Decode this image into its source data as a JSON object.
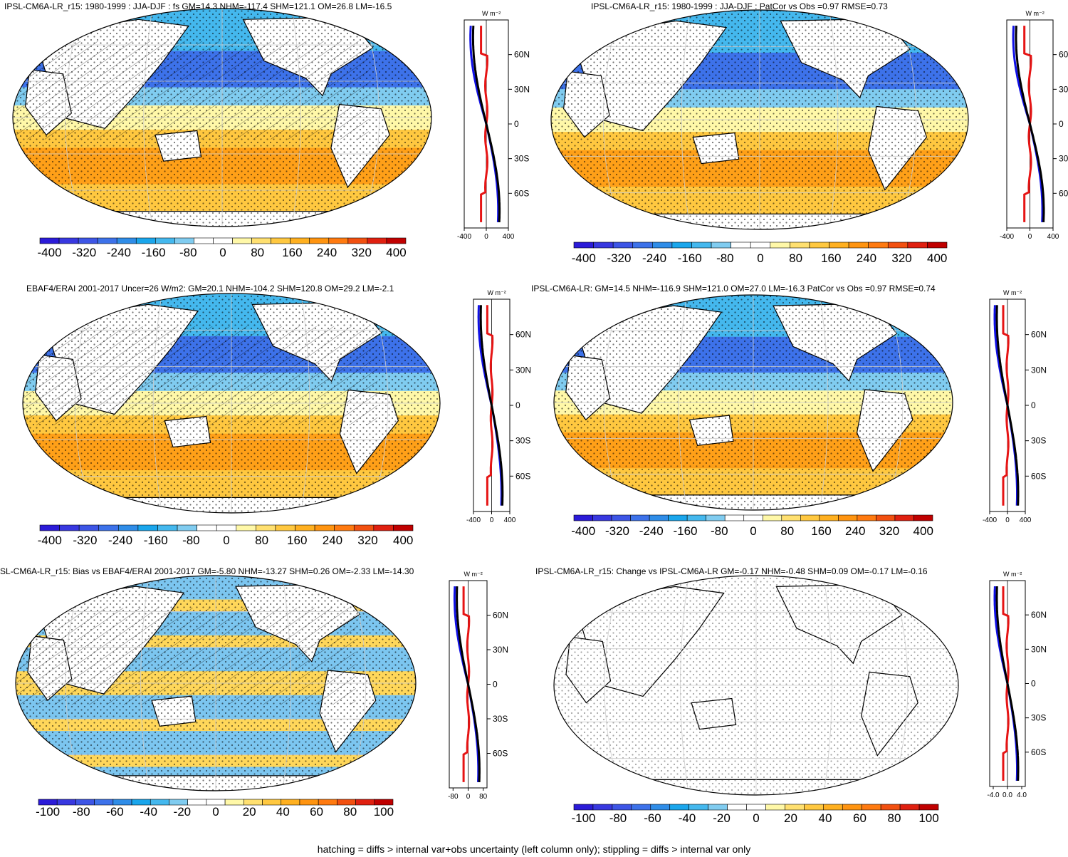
{
  "footer": "hatching = diffs > internal var+obs uncertainty (left column only); stippling = diffs > internal var only",
  "units": "W m⁻²",
  "lat_labels": [
    "60N",
    "30N",
    "0",
    "30S",
    "60S"
  ],
  "colors": {
    "full_scale": [
      "#2b1bd8",
      "#3838e0",
      "#3d55e6",
      "#3d72ea",
      "#2f8de8",
      "#1aa6ec",
      "#44b8ee",
      "#80ccf0",
      "#ffffff",
      "#ffffff",
      "#fff8a8",
      "#ffe070",
      "#ffc840",
      "#ffb020",
      "#ff9410",
      "#ff7a10",
      "#f25010",
      "#e02010",
      "#c00000"
    ],
    "land": "#ffffff",
    "model_line": "#000000",
    "nh_line": "#1010e6",
    "obs_line": "#e61414"
  },
  "chart_data": [
    {
      "type": "heatmap",
      "title": "IPSL-CM6A-LR_r15: 1980-1999 : JJA-DJF : fs GM=14.3 NHM=-117.4 SHM=121.1 OM=26.8 LM=-16.5",
      "colorbar": {
        "ticks": [
          "-400",
          "-320",
          "-240",
          "-160",
          "-80",
          "0",
          "80",
          "160",
          "240",
          "320",
          "400"
        ],
        "range": [
          -400,
          400
        ]
      },
      "profile": {
        "xticks": [
          "-400",
          "0",
          "400"
        ],
        "xlim": [
          -400,
          400
        ],
        "ylim": [
          -90,
          90
        ]
      },
      "hatching": true,
      "stippling": true
    },
    {
      "type": "heatmap",
      "title": "IPSL-CM6A-LR_r15: 1980-1999 : JJA-DJF : PatCor vs Obs =0.97 RMSE=0.73",
      "colorbar": {
        "ticks": [
          "-400",
          "-320",
          "-240",
          "-160",
          "-80",
          "0",
          "80",
          "160",
          "240",
          "320",
          "400"
        ],
        "range": [
          -400,
          400
        ]
      },
      "profile": {
        "xticks": [
          "-400",
          "0",
          "400"
        ],
        "xlim": [
          -400,
          400
        ],
        "ylim": [
          -90,
          90
        ]
      },
      "hatching": false,
      "stippling": true
    },
    {
      "type": "heatmap",
      "title": "EBAF4/ERAI 2001-2017 Uncer=26 W/m2: GM=20.1 NHM=-104.2 SHM=120.8 OM=29.2 LM=-2.1",
      "colorbar": {
        "ticks": [
          "-400",
          "-320",
          "-240",
          "-160",
          "-80",
          "0",
          "80",
          "160",
          "240",
          "320",
          "400"
        ],
        "range": [
          -400,
          400
        ]
      },
      "profile": {
        "xticks": [
          "-400",
          "0",
          "400"
        ],
        "xlim": [
          -400,
          400
        ],
        "ylim": [
          -90,
          90
        ]
      },
      "hatching": true,
      "stippling": true
    },
    {
      "type": "heatmap",
      "title": "IPSL-CM6A-LR: GM=14.5 NHM=-116.9 SHM=121.0 OM=27.0 LM=-16.3 PatCor vs Obs =0.97 RMSE=0.74",
      "colorbar": {
        "ticks": [
          "-400",
          "-320",
          "-240",
          "-160",
          "-80",
          "0",
          "80",
          "160",
          "240",
          "320",
          "400"
        ],
        "range": [
          -400,
          400
        ]
      },
      "profile": {
        "xticks": [
          "-400",
          "0",
          "400"
        ],
        "xlim": [
          -400,
          400
        ],
        "ylim": [
          -90,
          90
        ]
      },
      "hatching": false,
      "stippling": true
    },
    {
      "type": "heatmap",
      "title": "SL-CM6A-LR_r15: Bias vs EBAF4/ERAI 2001-2017 GM=-5.80 NHM=-13.27 SHM=0.26 OM=-2.33 LM=-14.30",
      "colorbar": {
        "ticks": [
          "-100",
          "-80",
          "-60",
          "-40",
          "-20",
          "0",
          "20",
          "40",
          "60",
          "80",
          "100"
        ],
        "range": [
          -100,
          100
        ]
      },
      "profile": {
        "xticks": [
          "-80",
          "0",
          "80"
        ],
        "xlim": [
          -100,
          100
        ],
        "ylim": [
          -90,
          90
        ]
      },
      "hatching": true,
      "stippling": true
    },
    {
      "type": "heatmap",
      "title": "IPSL-CM6A-LR_r15: Change vs IPSL-CM6A-LR GM=-0.17 NHM=-0.48 SHM=0.09 OM=-0.17 LM=-0.16",
      "colorbar": {
        "ticks": [
          "-100",
          "-80",
          "-60",
          "-40",
          "-20",
          "0",
          "20",
          "40",
          "60",
          "80",
          "100"
        ],
        "range": [
          -100,
          100
        ]
      },
      "profile": {
        "xticks": [
          "-4.0",
          "0.0",
          "4.0"
        ],
        "xlim": [
          -5,
          5
        ],
        "ylim": [
          -90,
          90
        ]
      },
      "hatching": false,
      "stippling": true
    }
  ]
}
